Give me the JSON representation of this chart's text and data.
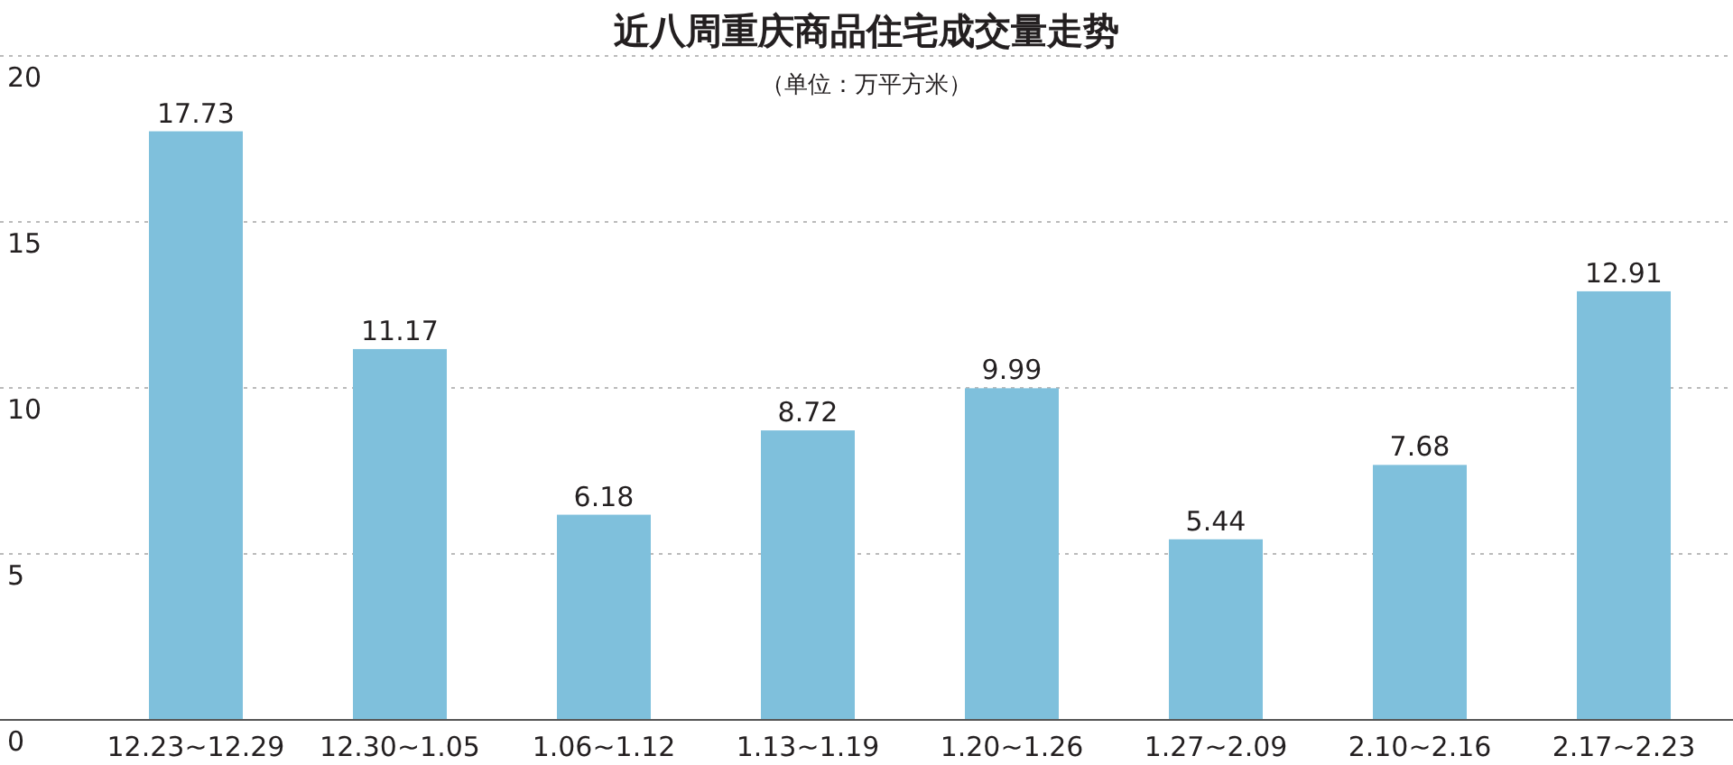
{
  "chart_data": {
    "type": "bar",
    "title": "近八周重庆商品住宅成交量走势",
    "subtitle": "（单位：万平方米）",
    "categories": [
      "12.23~12.29",
      "12.30~1.05",
      "1.06~1.12",
      "1.13~1.19",
      "1.20~1.26",
      "1.27~2.09",
      "2.10~2.16",
      "2.17~2.23"
    ],
    "values": [
      17.73,
      11.17,
      6.18,
      8.72,
      9.99,
      5.44,
      7.68,
      12.91
    ],
    "color": "#7fc0dc",
    "ylim": [
      0,
      20
    ],
    "yticks": [
      0,
      5,
      10,
      15,
      20
    ],
    "grid": "y",
    "data_labels": true
  }
}
